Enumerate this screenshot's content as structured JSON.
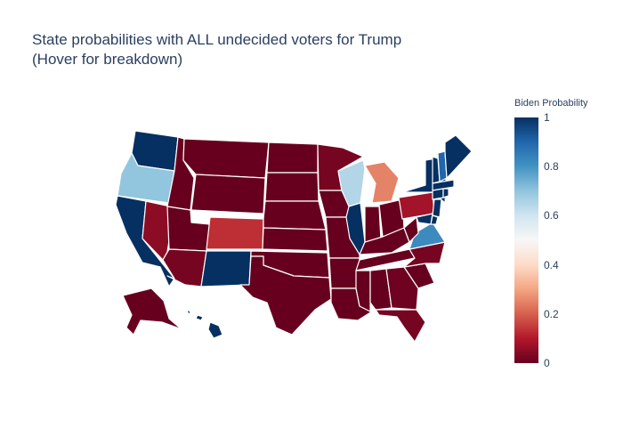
{
  "title_line1": "State probabilities with ALL undecided voters for Trump",
  "title_line2": "(Hover for breakdown)",
  "colorbar": {
    "title": "Biden Probability",
    "ticks": [
      "1",
      "0.8",
      "0.6",
      "0.4",
      "0.2",
      "0"
    ],
    "colorscale": [
      "#67001f",
      "#b2182b",
      "#d6604d",
      "#f4a582",
      "#fddbc7",
      "#f7f7f7",
      "#d1e5f0",
      "#92c5de",
      "#4393c3",
      "#2166ac",
      "#053061"
    ]
  },
  "states": {
    "WA": 1.0,
    "OR": 0.7,
    "CA": 1.0,
    "NV": 0.05,
    "ID": 0.0,
    "MT": 0.0,
    "WY": 0.0,
    "UT": 0.0,
    "AZ": 0.02,
    "CO": 0.13,
    "NM": 1.0,
    "ND": 0.0,
    "SD": 0.0,
    "NE": 0.0,
    "KS": 0.0,
    "OK": 0.0,
    "TX": 0.0,
    "MN": 0.02,
    "IA": 0.0,
    "MO": 0.0,
    "AR": 0.0,
    "LA": 0.0,
    "WI": 0.65,
    "IL": 1.0,
    "MI": 0.25,
    "IN": 0.0,
    "OH": 0.0,
    "KY": 0.0,
    "TN": 0.0,
    "MS": 0.0,
    "AL": 0.0,
    "GA": 0.01,
    "FL": 0.02,
    "SC": 0.0,
    "NC": 0.02,
    "VA": 0.82,
    "WV": 0.0,
    "PA": 0.08,
    "NY": 1.0,
    "VT": 1.0,
    "NH": 0.9,
    "ME": 1.0,
    "MA": 1.0,
    "CT": 1.0,
    "RI": 1.0,
    "NJ": 1.0,
    "DE": 1.0,
    "MD": 1.0,
    "AK": 0.0,
    "HI": 1.0
  }
}
